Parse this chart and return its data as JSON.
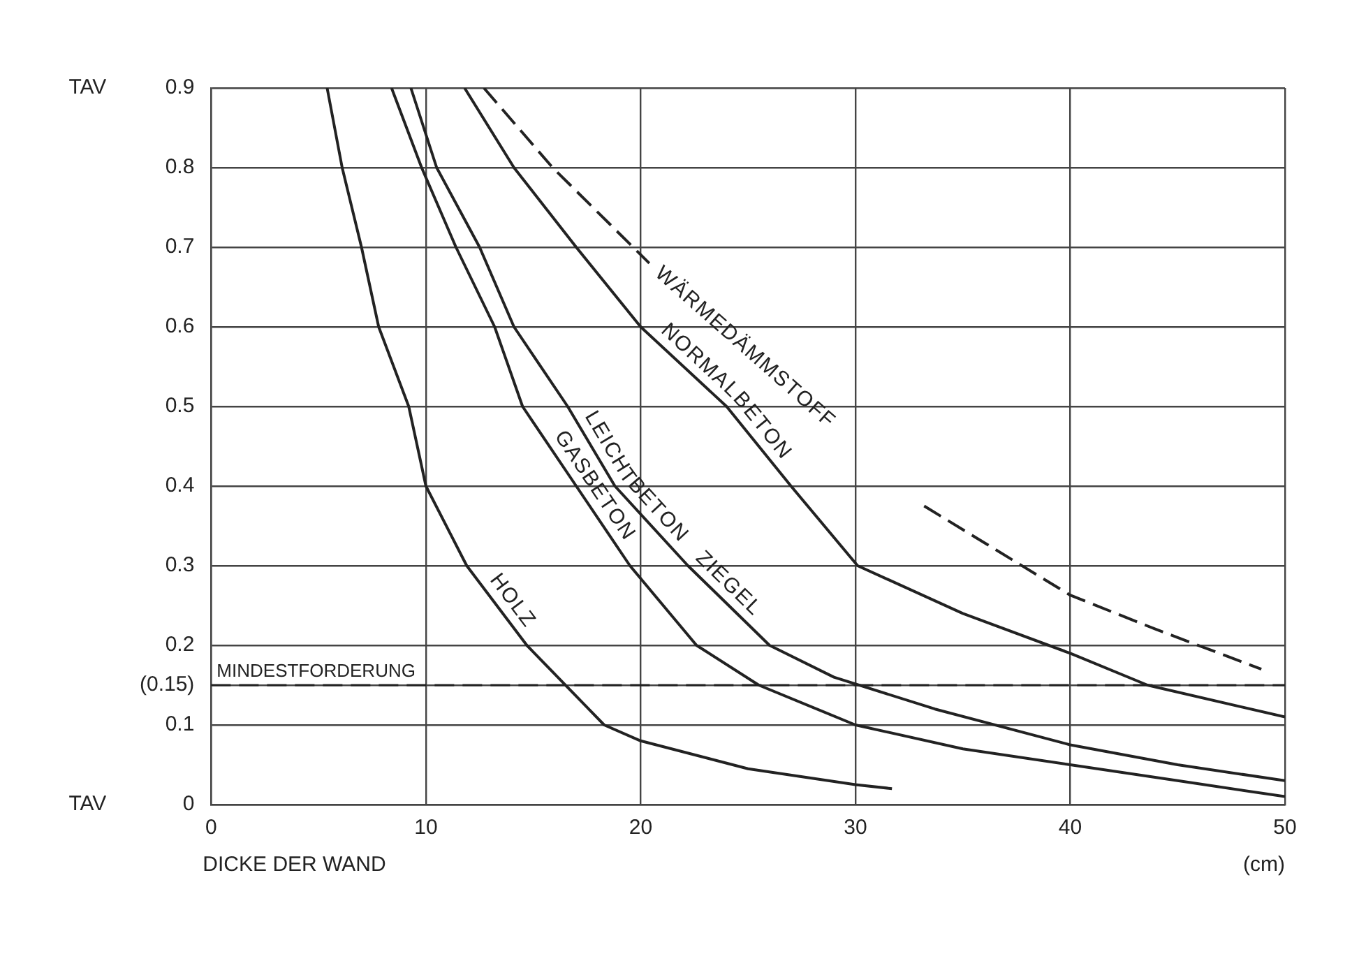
{
  "chart_data": {
    "type": "line",
    "xlabel": "DICKE DER WAND",
    "ylabel": "TAV",
    "xlim": [
      0,
      50
    ],
    "xticks": [
      0,
      10,
      20,
      30,
      40,
      50
    ],
    "ylim": [
      0,
      0.9
    ],
    "yticks": [
      0,
      0.1,
      {
        "value": 0.15,
        "label": "(0.15)"
      },
      0.2,
      0.3,
      0.4,
      0.5,
      0.6,
      0.7,
      0.8,
      0.9
    ],
    "grid": true,
    "legend": false,
    "marker": "none",
    "series": [
      {
        "name": "HOLZ",
        "color": "#222222",
        "x": [
          5.4,
          6.1,
          7.0,
          7.8,
          9.2,
          10.0,
          11.9,
          14.7,
          18.3,
          20,
          25,
          30,
          31.7
        ],
        "values": [
          0.9,
          0.8,
          0.7,
          0.6,
          0.5,
          0.4,
          0.3,
          0.2,
          0.1,
          0.08,
          0.045,
          0.025,
          0.02
        ]
      },
      {
        "name": "GASBETON",
        "color": "#222222",
        "x": [
          8.4,
          9.8,
          11.4,
          13.2,
          14.5,
          17,
          19.5,
          22.6,
          25.5,
          30,
          35,
          40,
          45,
          50
        ],
        "values": [
          0.9,
          0.8,
          0.7,
          0.6,
          0.5,
          0.4,
          0.3,
          0.2,
          0.15,
          0.1,
          0.07,
          0.05,
          0.03,
          0.01
        ]
      },
      {
        "name": "LEICHTBETON   ZIEGEL",
        "color": "#222222",
        "x": [
          9.3,
          10.5,
          12.5,
          14.1,
          16.6,
          18.8,
          22.2,
          26,
          29,
          33.7,
          40,
          45,
          50
        ],
        "values": [
          0.9,
          0.8,
          0.7,
          0.6,
          0.5,
          0.4,
          0.3,
          0.2,
          0.16,
          0.12,
          0.075,
          0.05,
          0.03
        ]
      },
      {
        "name": "NORMALBETON",
        "color": "#222222",
        "x": [
          11.8,
          14.1,
          17,
          20,
          24,
          27,
          30.1,
          35,
          40,
          43.6,
          50
        ],
        "values": [
          0.9,
          0.8,
          0.7,
          0.6,
          0.5,
          0.4,
          0.3,
          0.24,
          0.19,
          0.15,
          0.11
        ]
      },
      {
        "name": "WÄRMEDÄMMSTOFF",
        "color": "#222222",
        "line_style": "dashed",
        "x": [
          12.7,
          15.9,
          20.4,
          27,
          33.2,
          40,
          44,
          48.9
        ],
        "values": [
          0.9,
          0.8,
          0.68,
          null,
          0.375,
          0.263,
          0.22,
          0.17
        ]
      }
    ],
    "ref_lines": [
      {
        "axis": "y",
        "value": 0.15,
        "label": "MINDESTFORDERUNG",
        "line_style": "dashed",
        "color": "#222222"
      }
    ],
    "annotations": [
      "TAV",
      "(cm)"
    ]
  }
}
